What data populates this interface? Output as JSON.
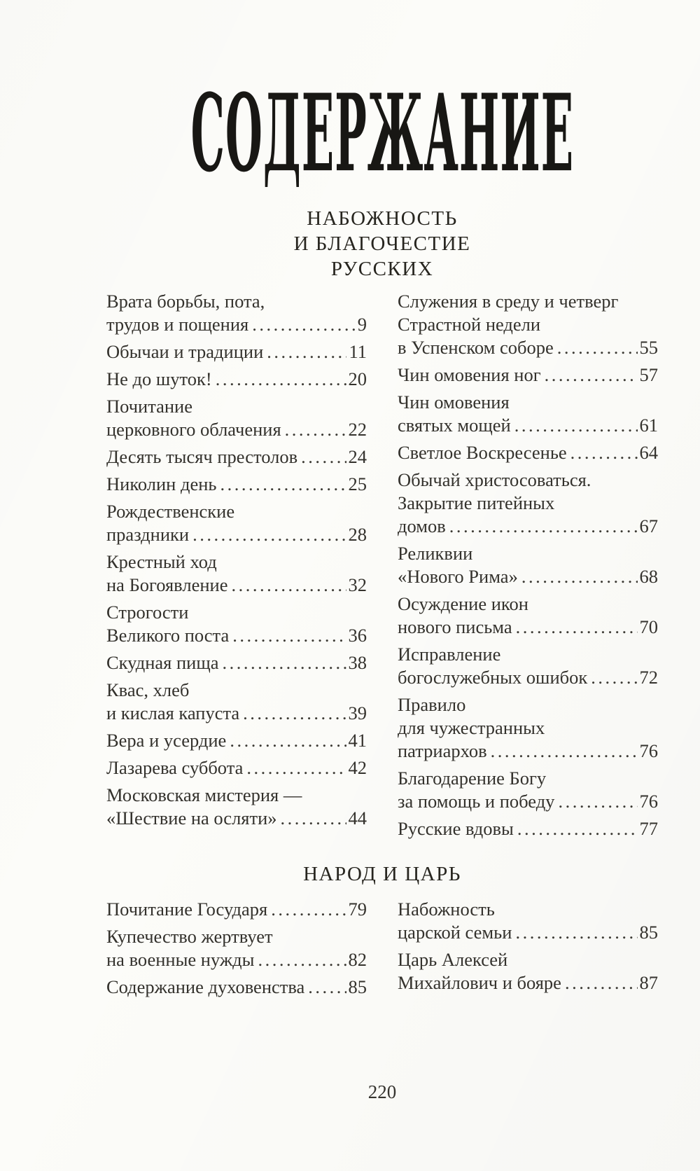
{
  "page": {
    "title": "СОДЕРЖАНИЕ",
    "page_number": "220"
  },
  "sections": [
    {
      "heading_lines": [
        "НАБОЖНОСТЬ",
        "И БЛАГОЧЕСТИЕ",
        "РУССКИХ"
      ],
      "left": [
        {
          "lines": [
            "Врата борьбы, пота,",
            "трудов и пощения"
          ],
          "page": "9"
        },
        {
          "lines": [
            "Обычаи и традиции"
          ],
          "page": "11"
        },
        {
          "lines": [
            "Не до шуток!"
          ],
          "page": "20"
        },
        {
          "lines": [
            "Почитание",
            "церковного облачения"
          ],
          "page": "22"
        },
        {
          "lines": [
            "Десять тысяч престолов"
          ],
          "page": "24"
        },
        {
          "lines": [
            "Николин день"
          ],
          "page": "25"
        },
        {
          "lines": [
            "Рождественские",
            "праздники"
          ],
          "page": "28"
        },
        {
          "lines": [
            "Крестный ход",
            "на Богоявление"
          ],
          "page": "32"
        },
        {
          "lines": [
            "Строгости",
            "Великого поста"
          ],
          "page": "36"
        },
        {
          "lines": [
            "Скудная пища"
          ],
          "page": "38"
        },
        {
          "lines": [
            "Квас, хлеб",
            "и кислая капуста"
          ],
          "page": "39"
        },
        {
          "lines": [
            "Вера и усердие"
          ],
          "page": "41"
        },
        {
          "lines": [
            "Лазарева суббота"
          ],
          "page": "42"
        },
        {
          "lines": [
            "Московская мистерия —",
            "«Шествие на осляти»"
          ],
          "page": "44"
        }
      ],
      "right": [
        {
          "lines": [
            "Служения в среду и четверг",
            "Страстной недели",
            "в Успенском соборе"
          ],
          "page": "55"
        },
        {
          "lines": [
            "Чин омовения ног"
          ],
          "page": "57"
        },
        {
          "lines": [
            "Чин омовения",
            "святых мощей"
          ],
          "page": "61"
        },
        {
          "lines": [
            "Светлое Воскресенье"
          ],
          "page": "64"
        },
        {
          "lines": [
            "Обычай христосоваться.",
            "Закрытие питейных",
            "домов"
          ],
          "page": "67"
        },
        {
          "lines": [
            "Реликвии",
            "«Нового Рима»"
          ],
          "page": "68"
        },
        {
          "lines": [
            "Осуждение икон",
            "нового письма"
          ],
          "page": "70"
        },
        {
          "lines": [
            "Исправление",
            "богослужебных ошибок"
          ],
          "page": "72"
        },
        {
          "lines": [
            "Правило",
            "для чужестранных",
            "патриархов"
          ],
          "page": "76"
        },
        {
          "lines": [
            "Благодарение Богу",
            "за помощь и победу"
          ],
          "page": "76"
        },
        {
          "lines": [
            "Русские вдовы"
          ],
          "page": "77"
        }
      ]
    },
    {
      "heading_lines": [
        "НАРОД И ЦАРЬ"
      ],
      "left": [
        {
          "lines": [
            "Почитание Государя"
          ],
          "page": "79"
        },
        {
          "lines": [
            "Купечество жертвует",
            "на военные нужды"
          ],
          "page": "82"
        },
        {
          "lines": [
            "Содержание духовенства"
          ],
          "page": "85"
        }
      ],
      "right": [
        {
          "lines": [
            "Набожность",
            "царской семьи"
          ],
          "page": "85"
        },
        {
          "lines": [
            "Царь Алексей",
            "Михайлович и бояре"
          ],
          "page": "87"
        }
      ]
    }
  ]
}
